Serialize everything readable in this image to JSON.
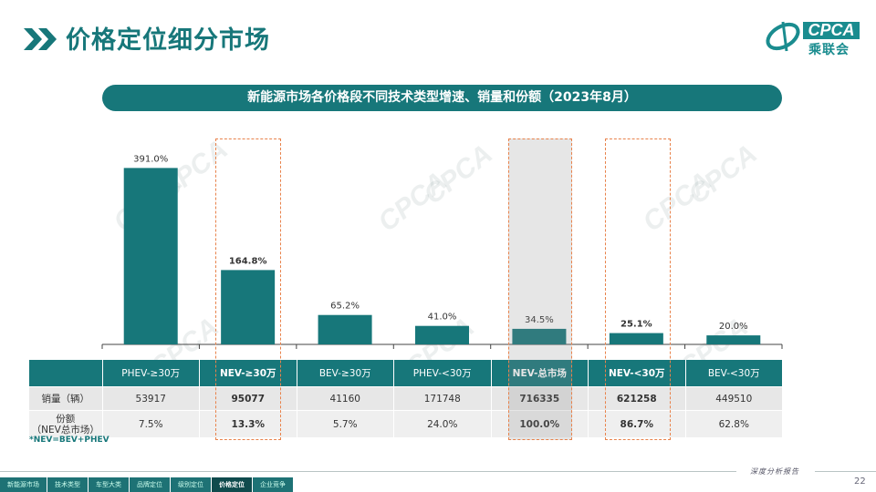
{
  "page_title": "价格定位细分市场",
  "logo": {
    "brand": "CPCA",
    "cn": "乘联会"
  },
  "watermark_text": "CPCA",
  "chart_data": {
    "type": "bar",
    "title": "新能源市场各价格段不同技术类型增速、销量和份额（2023年8月）",
    "categories": [
      "PHEV-≥30万",
      "NEV-≥30万",
      "BEV-≥30万",
      "PHEV-<30万",
      "NEV-总市场",
      "NEV-<30万",
      "BEV-<30万"
    ],
    "values": [
      391.0,
      164.8,
      65.2,
      41.0,
      34.5,
      25.1,
      20.0
    ],
    "value_labels": [
      "391.0%",
      "164.8%",
      "65.2%",
      "41.0%",
      "34.5%",
      "25.1%",
      "20.0%"
    ],
    "bold_labels": [
      false,
      true,
      false,
      false,
      false,
      true,
      false
    ],
    "ylim": [
      0,
      420
    ],
    "bar_color": "#17777a",
    "highlight_color": "#e8824b",
    "grid": false
  },
  "table": {
    "headers": [
      "",
      "PHEV-≥30万",
      "NEV-≥30万",
      "BEV-≥30万",
      "PHEV-<30万",
      "NEV-总市场",
      "NEV-<30万",
      "BEV-<30万"
    ],
    "rows": [
      {
        "label": "销量（辆）",
        "values": [
          "53917",
          "95077",
          "41160",
          "171748",
          "716335",
          "621258",
          "449510"
        ]
      },
      {
        "label": "份额\n（NEV总市场）",
        "values": [
          "7.5%",
          "13.3%",
          "5.7%",
          "24.0%",
          "100.0%",
          "86.7%",
          "62.8%"
        ]
      }
    ]
  },
  "note": "*NEV=BEV+PHEV",
  "footer": {
    "tag": "深度分析报告",
    "page": "22",
    "nav": [
      "新能源市场",
      "技术类型",
      "车型大类",
      "品牌定位",
      "级别定位",
      "价格定位",
      "企业竞争"
    ],
    "active_nav": 5
  }
}
